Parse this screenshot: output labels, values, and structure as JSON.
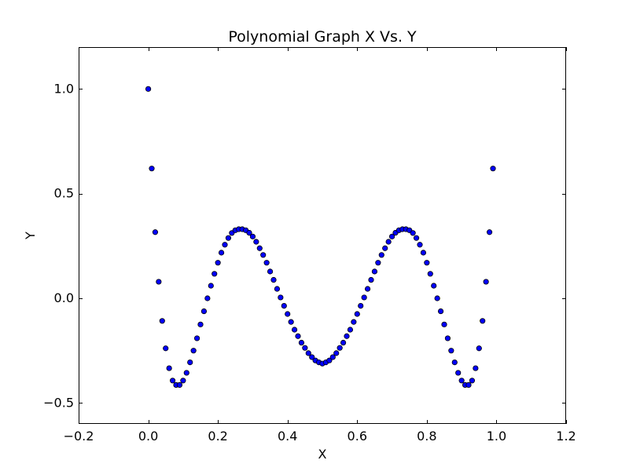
{
  "chart_data": {
    "type": "scatter",
    "title": "Polynomial Graph X Vs. Y",
    "xlabel": "X",
    "ylabel": "Y",
    "xlim": [
      -0.2,
      1.2
    ],
    "ylim": [
      -0.6,
      1.2
    ],
    "x_ticks": [
      -0.2,
      0.0,
      0.2,
      0.4,
      0.6,
      0.8,
      1.0,
      1.2
    ],
    "x_tick_labels": [
      "−0.2",
      "0.0",
      "0.2",
      "0.4",
      "0.6",
      "0.8",
      "1.0",
      "1.2"
    ],
    "y_ticks": [
      -0.5,
      0.0,
      0.5,
      1.0
    ],
    "y_tick_labels": [
      "−0.5",
      "0.0",
      "0.5",
      "1.0"
    ],
    "grid": false,
    "marker_color": "#0000ff",
    "marker_edge_color": "#000000",
    "x": [
      0.0,
      0.01,
      0.02,
      0.03,
      0.04,
      0.05,
      0.06,
      0.07,
      0.08,
      0.09,
      0.1,
      0.11,
      0.12,
      0.13,
      0.14,
      0.15,
      0.16,
      0.17,
      0.18,
      0.19,
      0.2,
      0.21,
      0.22,
      0.23,
      0.24,
      0.25,
      0.26,
      0.27,
      0.28,
      0.29,
      0.3,
      0.31,
      0.32,
      0.33,
      0.34,
      0.35,
      0.36,
      0.37,
      0.38,
      0.39,
      0.4,
      0.41,
      0.42,
      0.43,
      0.44,
      0.45,
      0.46,
      0.47,
      0.48,
      0.49,
      0.5,
      0.51,
      0.52,
      0.53,
      0.54,
      0.55,
      0.56,
      0.57,
      0.58,
      0.59,
      0.6,
      0.61,
      0.62,
      0.63,
      0.64,
      0.65,
      0.66,
      0.67,
      0.68,
      0.69,
      0.7,
      0.71,
      0.72,
      0.73,
      0.74,
      0.75,
      0.76,
      0.77,
      0.78,
      0.79,
      0.8,
      0.81,
      0.82,
      0.83,
      0.84,
      0.85,
      0.86,
      0.87,
      0.88,
      0.89,
      0.9,
      0.91,
      0.92,
      0.93,
      0.94,
      0.95,
      0.96,
      0.97,
      0.98,
      0.99
    ],
    "y": [
      1.0,
      0.62,
      0.316,
      0.079,
      -0.108,
      -0.239,
      -0.334,
      -0.393,
      -0.414,
      -0.414,
      -0.393,
      -0.356,
      -0.306,
      -0.25,
      -0.191,
      -0.125,
      -0.062,
      0.0,
      0.06,
      0.117,
      0.17,
      0.218,
      0.256,
      0.288,
      0.312,
      0.325,
      0.33,
      0.33,
      0.325,
      0.313,
      0.295,
      0.27,
      0.239,
      0.207,
      0.17,
      0.128,
      0.088,
      0.045,
      0.004,
      -0.036,
      -0.075,
      -0.113,
      -0.15,
      -0.181,
      -0.212,
      -0.237,
      -0.262,
      -0.281,
      -0.297,
      -0.306,
      -0.312,
      -0.306,
      -0.297,
      -0.281,
      -0.262,
      -0.237,
      -0.212,
      -0.181,
      -0.15,
      -0.113,
      -0.075,
      -0.036,
      0.004,
      0.045,
      0.088,
      0.128,
      0.17,
      0.207,
      0.239,
      0.27,
      0.295,
      0.313,
      0.325,
      0.33,
      0.33,
      0.325,
      0.312,
      0.288,
      0.256,
      0.218,
      0.17,
      0.117,
      0.06,
      0.0,
      -0.062,
      -0.125,
      -0.191,
      -0.25,
      -0.306,
      -0.356,
      -0.393,
      -0.414,
      -0.414,
      -0.393,
      -0.334,
      -0.239,
      -0.108,
      0.079,
      0.316,
      0.62
    ]
  }
}
